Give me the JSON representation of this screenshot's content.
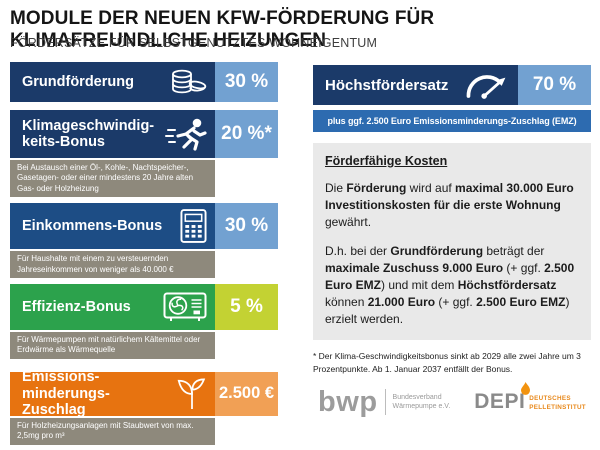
{
  "page": {
    "title": "MODULE DER NEUEN KFW-FÖRDERUNG FÜR KLIMAFREUNDLICHE HEIZUNGEN",
    "subtitle": "FÖRDERSÄTZE FÜR SELBSTGENUTZTES WOHNEIGENTUM"
  },
  "palette": {
    "navy": "#1b3a69",
    "blue2": "#1d4d85",
    "light_blue": "#72a1d1",
    "green": "#2ca24c",
    "lime": "#c3d233",
    "orange": "#e77310",
    "light_orange": "#f1a055",
    "emz_blue": "#2d6bb0",
    "note_gray": "#8e897c",
    "info_gray": "#e9e9e9"
  },
  "modules": [
    {
      "label": "Grundförderung",
      "value": "30 %",
      "icon": "coins-icon",
      "note": ""
    },
    {
      "label": "Klimageschwindig-keits-Bonus",
      "value": "20 %*",
      "icon": "runner-icon",
      "note": "Bei Austausch einer Öl-, Kohle-, Nachtspeicher-, Gasetagen- oder einer mindestens 20 Jahre alten Gas- oder Holzheizung"
    },
    {
      "label": "Einkommens-Bonus",
      "value": "30 %",
      "icon": "calculator-icon",
      "note": "Für Haushalte mit einem zu versteuernden Jahreseinkommen von weniger als 40.000 €"
    },
    {
      "label": "Effizienz-Bonus",
      "value": "5 %",
      "icon": "heat-pump-icon",
      "note": "Für Wärmepumpen mit natürlichem Kältemittel oder Erdwärme als Wärmequelle"
    },
    {
      "label": "Emissions-minderungs-Zuschlag",
      "value": "2.500 €",
      "icon": "seedling-icon",
      "note": "Für Holzheizungsanlagen mit Staubwert von max. 2,5mg pro m³"
    }
  ],
  "highlight": {
    "label": "Höchstfördersatz",
    "value": "70 %",
    "icon": "gauge-icon",
    "emz_strip": "plus ggf. 2.500 Euro Emissionsminderungs-Zuschlag (EMZ)"
  },
  "info_box": {
    "heading": "Förderfähige Kosten",
    "paragraph1": [
      {
        "t": "Die ",
        "b": false
      },
      {
        "t": "Förderung",
        "b": true
      },
      {
        "t": " wird auf ",
        "b": false
      },
      {
        "t": "maximal 30.000 Euro Investitionskosten für die erste Wohnung",
        "b": true
      },
      {
        "t": " gewährt.",
        "b": false
      }
    ],
    "paragraph2": [
      {
        "t": "D.h. bei der ",
        "b": false
      },
      {
        "t": "Grundförderung",
        "b": true
      },
      {
        "t": " beträgt der ",
        "b": false
      },
      {
        "t": "maximale Zuschuss 9.000 Euro",
        "b": true
      },
      {
        "t": " (+ ggf. ",
        "b": false
      },
      {
        "t": "2.500 Euro EMZ",
        "b": true
      },
      {
        "t": ") und mit dem ",
        "b": false
      },
      {
        "t": "Höchstfördersatz",
        "b": true
      },
      {
        "t": " können ",
        "b": false
      },
      {
        "t": "21.000 Euro",
        "b": true
      },
      {
        "t": " (+ ggf. ",
        "b": false
      },
      {
        "t": "2.500 Euro EMZ",
        "b": true
      },
      {
        "t": ") erzielt werden.",
        "b": false
      }
    ]
  },
  "footnote": "* Der Klima-Geschwindigkeitsbonus sinkt ab 2029 alle zwei Jahre um 3 Prozentpunkte. Ab 1. Januar 2037 entfällt der Bonus.",
  "logos": {
    "bwp": {
      "name": "bwp",
      "caption_line1": "Bundesverband",
      "caption_line2": "Wärmepumpe e.V."
    },
    "depi": {
      "name": "DEPI",
      "caption_line1": "DEUTSCHES",
      "caption_line2": "PELLETINSTITUT",
      "flame_color": "#f2930f"
    }
  }
}
